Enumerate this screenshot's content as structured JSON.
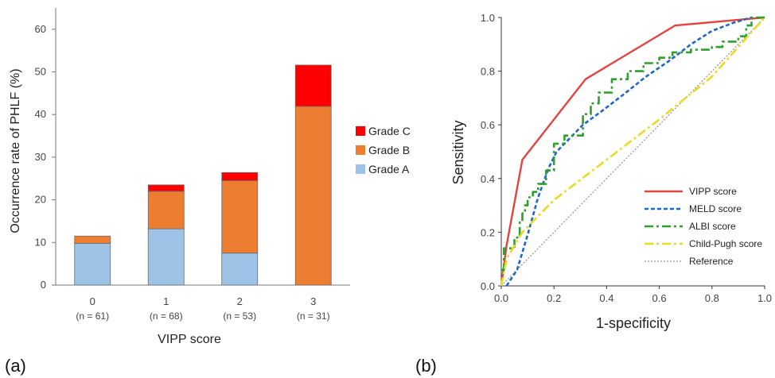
{
  "chart_data": [
    {
      "type": "bar",
      "stacked": true,
      "panel_label": "(a)",
      "categories": [
        "0",
        "1",
        "2",
        "3"
      ],
      "category_sublabels": [
        "(n = 61)",
        "(n = 68)",
        "(n = 53)",
        "(n = 31)"
      ],
      "series": [
        {
          "name": "Grade A",
          "color": "#9dc3e6",
          "values": [
            9.8,
            13.2,
            7.5,
            0
          ]
        },
        {
          "name": "Grade B",
          "color": "#ed7d31",
          "values": [
            1.7,
            8.8,
            17.0,
            41.9
          ]
        },
        {
          "name": "Grade C",
          "color": "#ff0000",
          "values": [
            0,
            1.5,
            1.9,
            9.7
          ]
        }
      ],
      "legend_order": [
        "Grade C",
        "Grade B",
        "Grade A"
      ],
      "xlabel": "VIPP score",
      "ylabel": "Occurrence rate of PHLF (%)",
      "ylim": [
        0,
        65
      ],
      "yticks": [
        0,
        10,
        20,
        30,
        40,
        50,
        60
      ],
      "grid": false,
      "legend_position": "right"
    },
    {
      "type": "line",
      "panel_label": "(b)",
      "xlabel": "1-specificity",
      "ylabel": "Sensitivity",
      "xlim": [
        0,
        1
      ],
      "ylim": [
        0,
        1
      ],
      "xticks": [
        "0.0",
        "0.2",
        "0.4",
        "0.6",
        "0.8",
        "1.0"
      ],
      "yticks": [
        "0.0",
        "0.2",
        "0.4",
        "0.6",
        "0.8",
        "1.0"
      ],
      "grid": false,
      "legend_position": "bottom-right",
      "series": [
        {
          "name": "VIPP score",
          "color": "#e0453f",
          "dash": "solid",
          "width": 2.4,
          "points": [
            [
              0,
              0
            ],
            [
              0.02,
              0.15
            ],
            [
              0.08,
              0.47
            ],
            [
              0.32,
              0.77
            ],
            [
              0.66,
              0.97
            ],
            [
              1,
              1
            ]
          ]
        },
        {
          "name": "MELD score",
          "color": "#1f66c9",
          "dash": "5,3",
          "width": 2.6,
          "points": [
            [
              0.02,
              0
            ],
            [
              0.06,
              0.06
            ],
            [
              0.1,
              0.19
            ],
            [
              0.14,
              0.33
            ],
            [
              0.18,
              0.44
            ],
            [
              0.21,
              0.5
            ],
            [
              0.26,
              0.55
            ],
            [
              0.31,
              0.6
            ],
            [
              0.38,
              0.65
            ],
            [
              0.46,
              0.71
            ],
            [
              0.55,
              0.78
            ],
            [
              0.64,
              0.84
            ],
            [
              0.72,
              0.9
            ],
            [
              0.8,
              0.95
            ],
            [
              0.88,
              0.98
            ],
            [
              0.95,
              1
            ]
          ]
        },
        {
          "name": "ALBI score",
          "color": "#2ea02e",
          "dash": "11,4,3,4",
          "width": 2.6,
          "step": true,
          "points": [
            [
              0,
              0.06
            ],
            [
              0.01,
              0.14
            ],
            [
              0.03,
              0.14
            ],
            [
              0.05,
              0.18
            ],
            [
              0.07,
              0.24
            ],
            [
              0.08,
              0.27
            ],
            [
              0.09,
              0.3
            ],
            [
              0.1,
              0.33
            ],
            [
              0.12,
              0.35
            ],
            [
              0.14,
              0.38
            ],
            [
              0.17,
              0.43
            ],
            [
              0.2,
              0.53
            ],
            [
              0.24,
              0.56
            ],
            [
              0.3,
              0.56
            ],
            [
              0.31,
              0.64
            ],
            [
              0.34,
              0.68
            ],
            [
              0.37,
              0.72
            ],
            [
              0.42,
              0.77
            ],
            [
              0.48,
              0.8
            ],
            [
              0.54,
              0.83
            ],
            [
              0.6,
              0.85
            ],
            [
              0.65,
              0.87
            ],
            [
              0.72,
              0.88
            ],
            [
              0.8,
              0.89
            ],
            [
              0.84,
              0.91
            ],
            [
              0.9,
              0.93
            ],
            [
              0.93,
              0.97
            ],
            [
              0.95,
              1
            ],
            [
              1,
              1
            ]
          ]
        },
        {
          "name": "Child-Pugh score",
          "color": "#ebd925",
          "dash": "11,4,3,4",
          "width": 2.6,
          "points": [
            [
              0,
              0
            ],
            [
              0.02,
              0.1
            ],
            [
              0.08,
              0.2
            ],
            [
              0.2,
              0.32
            ],
            [
              0.4,
              0.47
            ],
            [
              0.6,
              0.62
            ],
            [
              0.8,
              0.78
            ],
            [
              1,
              1
            ]
          ]
        },
        {
          "name": "Reference",
          "color": "#9a9a9a",
          "dash": "2,2",
          "width": 1.3,
          "points": [
            [
              0,
              0
            ],
            [
              1,
              1
            ]
          ]
        }
      ]
    }
  ]
}
